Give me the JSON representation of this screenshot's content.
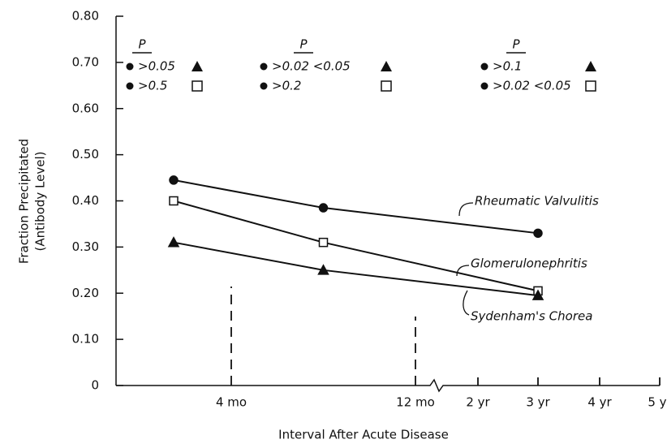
{
  "chart_data": {
    "type": "line",
    "ylabel": "Fraction Precipitated",
    "ylabel_sub": "(Antibody Level)",
    "xlabel": "Interval After Acute Disease",
    "xlim": [
      0,
      60
    ],
    "xticks": [
      {
        "value": 4,
        "label": "4 mo"
      },
      {
        "value": 12,
        "label": "12 mo"
      },
      {
        "value": 24,
        "label": "2 yr"
      },
      {
        "value": 36,
        "label": "3 yr"
      },
      {
        "value": 48,
        "label": "4 yr"
      },
      {
        "value": 60,
        "label": "5 yr"
      }
    ],
    "ylim": [
      0,
      0.8
    ],
    "yticks": [
      0,
      {
        "value": 0.1,
        "label": "0.10"
      },
      {
        "value": 0.2,
        "label": "0.20"
      },
      {
        "value": 0.3,
        "label": "0.30"
      },
      {
        "value": 0.4,
        "label": "0.40"
      },
      {
        "value": 0.5,
        "label": "0.50"
      },
      {
        "value": 0.6,
        "label": "0.60"
      },
      {
        "value": 0.7,
        "label": "0.70"
      },
      {
        "value": 0.8,
        "label": "0.80"
      }
    ],
    "x": [
      2,
      8,
      36
    ],
    "series": [
      {
        "name": "Rheumatic Valvulitis",
        "color": "#111111",
        "marker": "circle",
        "values": [
          0.445,
          0.385,
          0.33
        ]
      },
      {
        "name": "Glomerulonephritis",
        "color": "#111111",
        "marker": "square",
        "values": [
          0.4,
          0.31,
          0.205
        ]
      },
      {
        "name": "Sydenham's Chorea",
        "color": "#111111",
        "marker": "triangle",
        "values": [
          0.31,
          0.25,
          0.195
        ]
      }
    ],
    "p_values": [
      {
        "header": "P",
        "rows": [
          ">0.05",
          ">0.5"
        ]
      },
      {
        "header": "P",
        "rows": [
          ">0.02 <0.05",
          ">0.2"
        ]
      },
      {
        "header": "P",
        "rows": [
          ">0.1",
          ">0.02 <0.05"
        ]
      }
    ]
  }
}
